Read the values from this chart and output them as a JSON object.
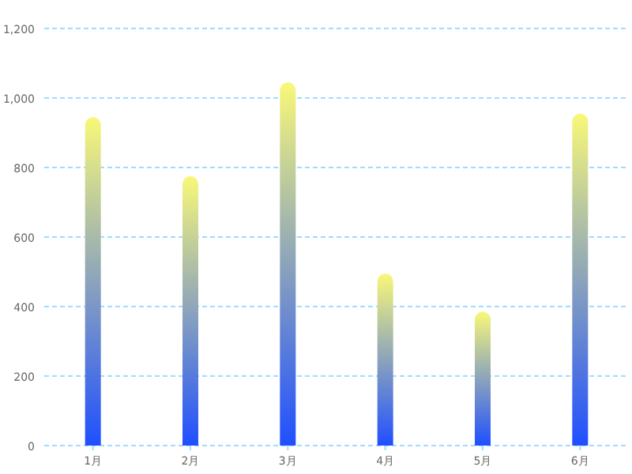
{
  "chart_data": {
    "type": "bar",
    "categories": [
      "1月",
      "2月",
      "3月",
      "4月",
      "5月",
      "6月"
    ],
    "series": [
      {
        "color": "#1f4fff",
        "values": [
          945,
          775,
          1045,
          495,
          385,
          955
        ]
      }
    ],
    "ylim": [
      0,
      1200
    ],
    "yticks": [
      0,
      200,
      400,
      600,
      800,
      {
        "value": 1000,
        "label": "1,000"
      },
      {
        "value": 1200,
        "label": "1,200"
      }
    ],
    "grid": "y"
  }
}
